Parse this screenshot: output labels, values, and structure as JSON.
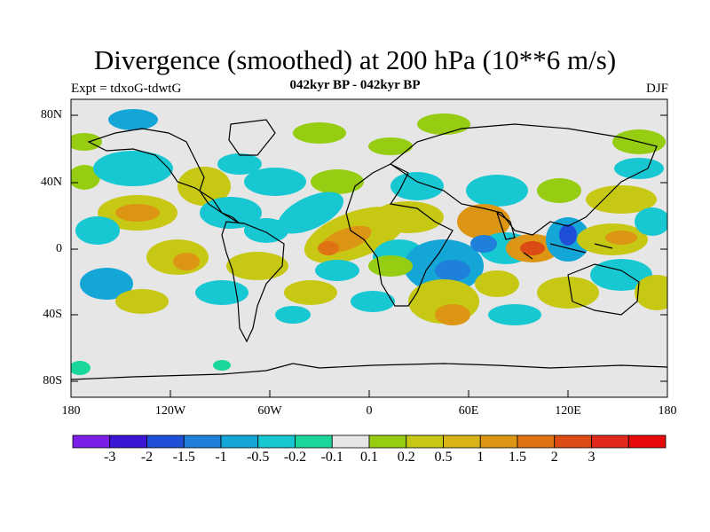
{
  "title": "Divergence (smoothed) at 200 hPa (10**6 m/s)",
  "subtitle": "042kyr BP - 042kyr BP",
  "left_label": "Expt = tdxoG-tdwtG",
  "right_label": "DJF",
  "lat_labels": [
    "80N",
    "40N",
    "0",
    "40S",
    "80S"
  ],
  "lon_labels": [
    "180",
    "120W",
    "60W",
    "0",
    "60E",
    "120E",
    "180"
  ],
  "colorbar": {
    "colors": [
      "#7a1ee8",
      "#3b16d6",
      "#1f4fd6",
      "#1e80d8",
      "#15a6d8",
      "#17c8d2",
      "#19d79a",
      "#e6e6e6",
      "#96cd12",
      "#c6c814",
      "#d9b416",
      "#dd9514",
      "#df7314",
      "#dd4b14",
      "#e1281a",
      "#e60a0a"
    ],
    "labels": [
      "-3",
      "-2",
      "-1.5",
      "-1",
      "-0.5",
      "-0.2",
      "-0.1",
      "0.1",
      "0.2",
      "0.5",
      "1",
      "1.5",
      "2",
      "3"
    ]
  }
}
